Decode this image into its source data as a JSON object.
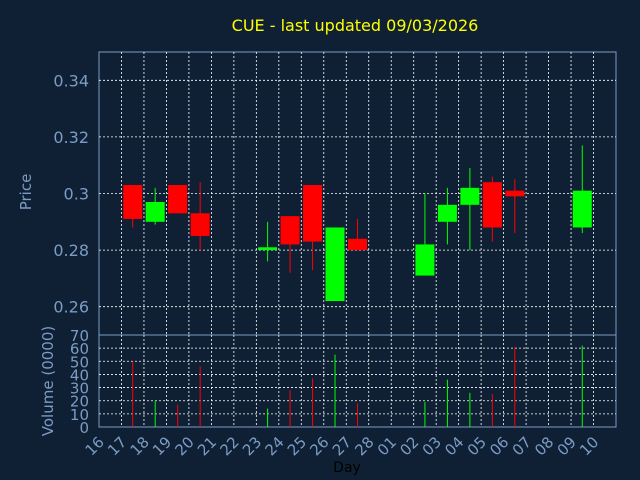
{
  "chart_data": [
    {
      "type": "candlestick",
      "title": "CUE - last updated 09/03/2026",
      "ylabel": "Price",
      "ylim": [
        0.25,
        0.35
      ],
      "yticks": [
        0.26,
        0.28,
        0.3,
        0.32,
        0.34
      ],
      "ytick_labels": [
        "0.26",
        "0.28",
        "0.3",
        "0.32",
        "0.34"
      ],
      "grid": true,
      "up_color": "#00ff00",
      "down_color": "#ff0000",
      "candles": [
        {
          "day": "17",
          "open": 0.303,
          "high": 0.303,
          "low": 0.288,
          "close": 0.291
        },
        {
          "day": "18",
          "open": 0.29,
          "high": 0.302,
          "low": 0.289,
          "close": 0.297
        },
        {
          "day": "19",
          "open": 0.303,
          "high": 0.303,
          "low": 0.293,
          "close": 0.293
        },
        {
          "day": "20",
          "open": 0.293,
          "high": 0.304,
          "low": 0.28,
          "close": 0.285
        },
        {
          "day": "23",
          "open": 0.28,
          "high": 0.29,
          "low": 0.276,
          "close": 0.281
        },
        {
          "day": "24",
          "open": 0.292,
          "high": 0.292,
          "low": 0.272,
          "close": 0.282
        },
        {
          "day": "25",
          "open": 0.303,
          "high": 0.303,
          "low": 0.273,
          "close": 0.283
        },
        {
          "day": "26",
          "open": 0.262,
          "high": 0.288,
          "low": 0.262,
          "close": 0.288
        },
        {
          "day": "27",
          "open": 0.284,
          "high": 0.291,
          "low": 0.28,
          "close": 0.28
        },
        {
          "day": "02",
          "open": 0.271,
          "high": 0.3,
          "low": 0.271,
          "close": 0.282
        },
        {
          "day": "03",
          "open": 0.29,
          "high": 0.302,
          "low": 0.282,
          "close": 0.296
        },
        {
          "day": "04",
          "open": 0.296,
          "high": 0.309,
          "low": 0.28,
          "close": 0.302
        },
        {
          "day": "05",
          "open": 0.304,
          "high": 0.306,
          "low": 0.283,
          "close": 0.288
        },
        {
          "day": "06",
          "open": 0.301,
          "high": 0.305,
          "low": 0.286,
          "close": 0.299
        },
        {
          "day": "09",
          "open": 0.288,
          "high": 0.317,
          "low": 0.286,
          "close": 0.301
        }
      ]
    },
    {
      "type": "bar",
      "ylabel": "Volume (0000)",
      "xlabel": "Day",
      "ylim": [
        0,
        70
      ],
      "yticks": [
        0,
        10,
        20,
        30,
        40,
        50,
        60,
        70
      ],
      "ytick_labels": [
        "0",
        "10",
        "20",
        "30",
        "40",
        "50",
        "60",
        "70"
      ],
      "categories": [
        "16",
        "17",
        "18",
        "19",
        "20",
        "21",
        "22",
        "23",
        "24",
        "25",
        "26",
        "27",
        "28",
        "01",
        "02",
        "03",
        "04",
        "05",
        "06",
        "07",
        "08",
        "09",
        "10"
      ],
      "volumes": [
        {
          "day": "17",
          "value": 50,
          "direction": "down"
        },
        {
          "day": "18",
          "value": 20,
          "direction": "up"
        },
        {
          "day": "19",
          "value": 17,
          "direction": "down"
        },
        {
          "day": "20",
          "value": 46,
          "direction": "down"
        },
        {
          "day": "23",
          "value": 14,
          "direction": "up"
        },
        {
          "day": "24",
          "value": 28,
          "direction": "down"
        },
        {
          "day": "25",
          "value": 37,
          "direction": "down"
        },
        {
          "day": "26",
          "value": 55,
          "direction": "up"
        },
        {
          "day": "27",
          "value": 18,
          "direction": "down"
        },
        {
          "day": "02",
          "value": 19,
          "direction": "up"
        },
        {
          "day": "03",
          "value": 36,
          "direction": "up"
        },
        {
          "day": "04",
          "value": 26,
          "direction": "up"
        },
        {
          "day": "05",
          "value": 25,
          "direction": "down"
        },
        {
          "day": "06",
          "value": 61,
          "direction": "down"
        },
        {
          "day": "09",
          "value": 62,
          "direction": "up"
        }
      ]
    }
  ]
}
